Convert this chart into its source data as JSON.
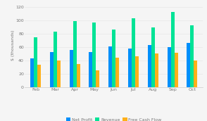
{
  "categories": [
    "Feb",
    "Mar",
    "Apr",
    "May",
    "Jun",
    "Jul",
    "Aug",
    "Sep",
    "Oct"
  ],
  "net_profit": [
    43,
    53,
    56,
    52,
    61,
    58,
    63,
    60,
    66
  ],
  "revenue": [
    75,
    83,
    99,
    97,
    86,
    103,
    89,
    113,
    93
  ],
  "free_cash_flow": [
    34,
    40,
    35,
    25,
    44,
    46,
    50,
    51,
    40
  ],
  "bar_colors": {
    "net_profit": "#008FFB",
    "revenue": "#00E396",
    "free_cash_flow": "#FEB019"
  },
  "legend_labels": [
    "Net Profit",
    "Revenue",
    "Free Cash Flow"
  ],
  "ylabel": "$ (thousands)",
  "ylim": [
    0,
    125
  ],
  "yticks": [
    0,
    20,
    40,
    60,
    80,
    100,
    120
  ],
  "background_color": "#f5f5f5",
  "grid_color": "#e8e8e8",
  "bar_width": 0.18
}
